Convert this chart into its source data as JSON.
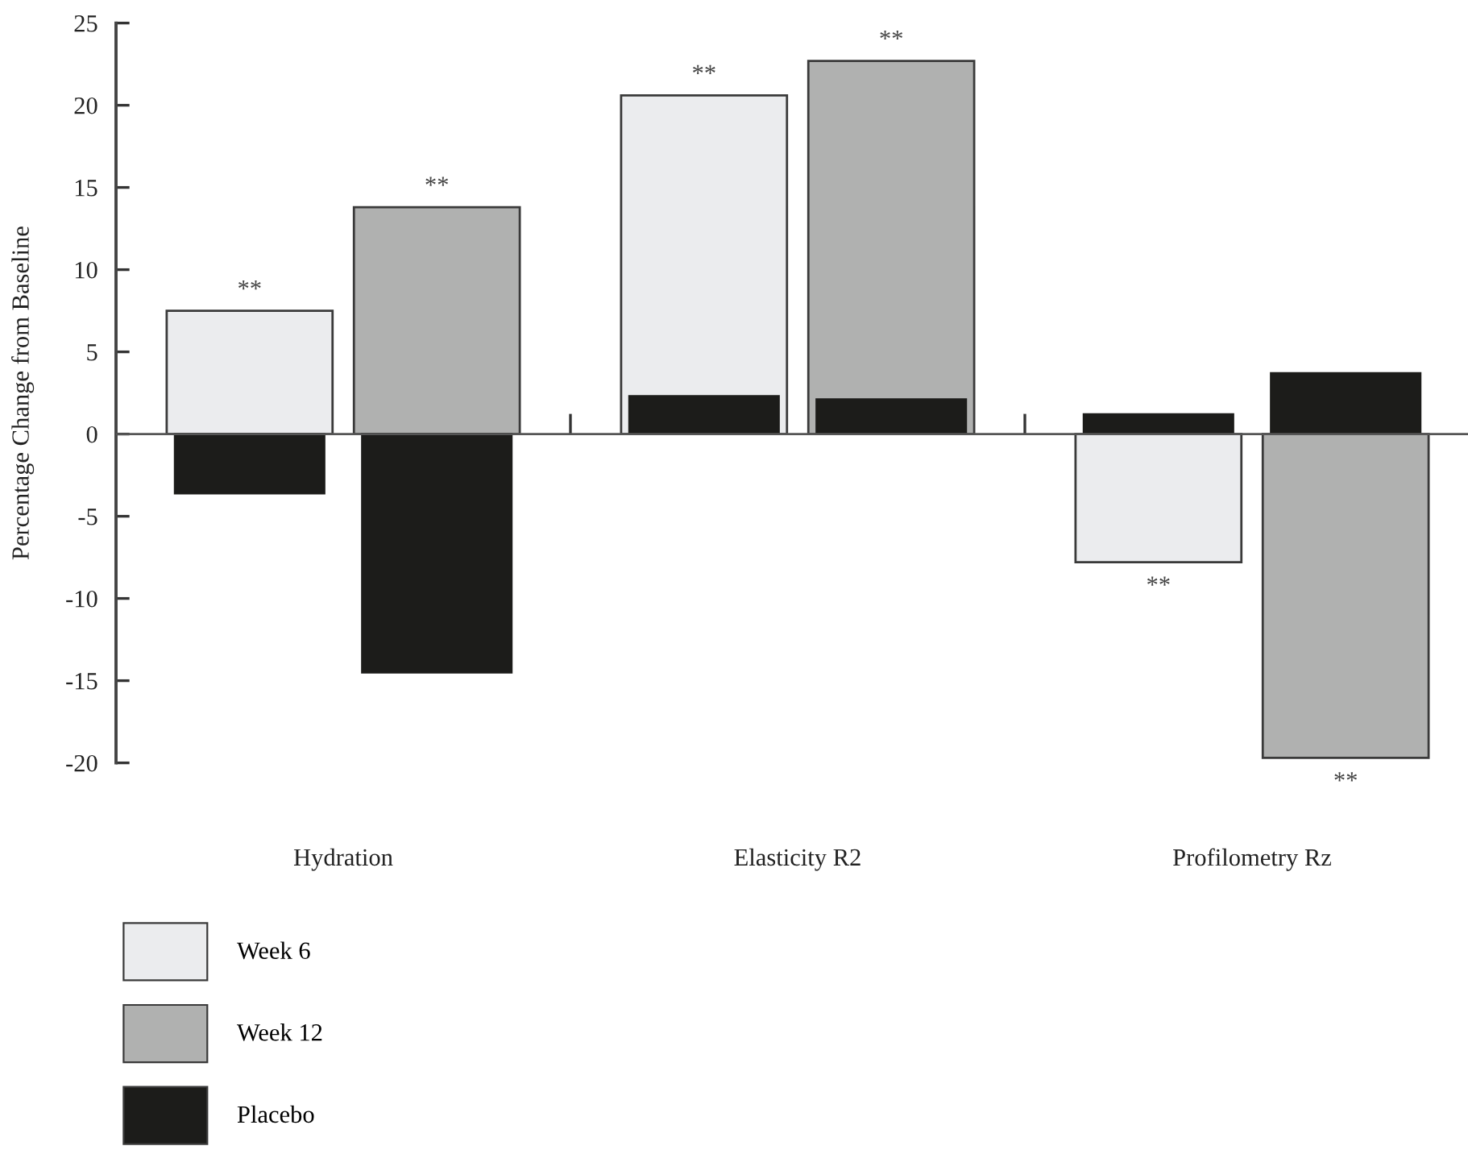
{
  "chart_data": {
    "type": "bar",
    "ylabel": "Percentage Change from Baseline",
    "categories": [
      "Hydration",
      "Elasticity R2",
      "Profilometry Rz"
    ],
    "series": [
      {
        "name": "Week 6",
        "color": "#ebecee",
        "values": [
          7.5,
          20.6,
          -7.8
        ]
      },
      {
        "name": "Week 12",
        "color": "#b0b1b0",
        "values": [
          13.8,
          22.7,
          -19.7
        ]
      },
      {
        "name": "Placebo",
        "color": "#1c1c1a",
        "values": [
          -3.6,
          2.3,
          1.2
        ]
      },
      {
        "color": "#1c1c1a",
        "values": [
          -14.5,
          2.1,
          3.7
        ]
      }
    ],
    "ylim": [
      -20,
      25
    ],
    "yticks": [
      {
        "value": 25,
        "label": "25"
      },
      {
        "value": 20,
        "label": "20"
      },
      {
        "value": 15,
        "label": "15"
      },
      {
        "value": 10,
        "label": "10"
      },
      {
        "value": 5,
        "label": "5"
      },
      {
        "value": 0,
        "label": "0"
      },
      {
        "value": -5,
        "label": "-5"
      },
      {
        "value": -10,
        "label": "-10"
      },
      {
        "value": -15,
        "label": "-15"
      },
      {
        "value": -20,
        "label": "-20"
      }
    ],
    "annotations": [
      "**",
      "**",
      "**",
      "**",
      "**",
      "**"
    ],
    "ref_lines": [
      {
        "axis": "y",
        "value": 0,
        "color": "#555555"
      }
    ],
    "grid": false,
    "legend": "bottom left"
  }
}
